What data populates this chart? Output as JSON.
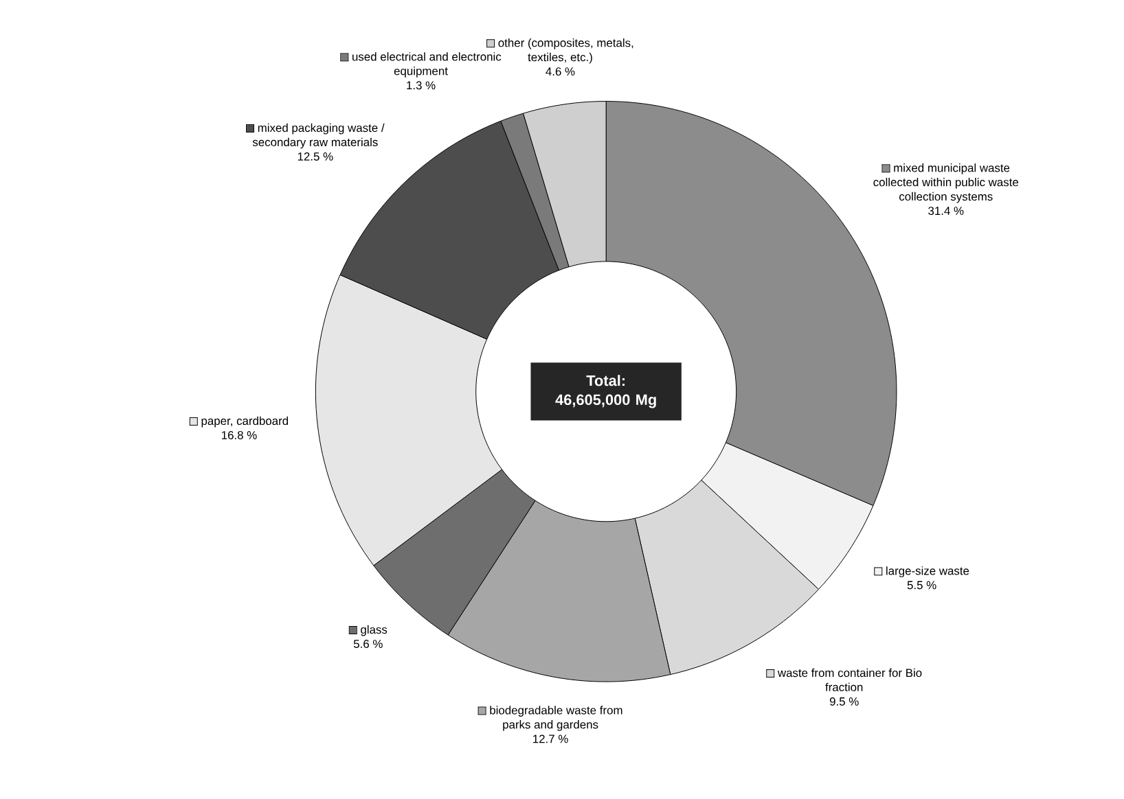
{
  "chart_data": {
    "type": "donut",
    "categories": [
      "mixed municipal waste collected within public waste collection systems",
      "large-size waste",
      "waste from container for Bio fraction",
      "biodegradable waste from parks and gardens",
      "glass",
      "paper, cardboard",
      "mixed packaging waste / secondary raw materials",
      "used electrical and electronic equipment",
      "other (composites, metals, textiles, etc.)"
    ],
    "values": [
      31.4,
      5.5,
      9.5,
      12.7,
      5.6,
      16.8,
      12.5,
      1.3,
      4.6
    ],
    "colors": [
      "#8c8c8c",
      "#f2f2f2",
      "#d9d9d9",
      "#a6a6a6",
      "#6e6e6e",
      "#e6e6e6",
      "#4d4d4d",
      "#7a7a7a",
      "#cfcfcf"
    ],
    "value_labels": [
      "31.4 %",
      "5.5 %",
      "9.5 %",
      "12.7 %",
      "5.6 %",
      "16.8 %",
      "12.5 %",
      "1.3 %",
      "4.6 %"
    ],
    "annotations": [
      "Total: 46,605,000 Mg"
    ],
    "legend": "top left"
  }
}
